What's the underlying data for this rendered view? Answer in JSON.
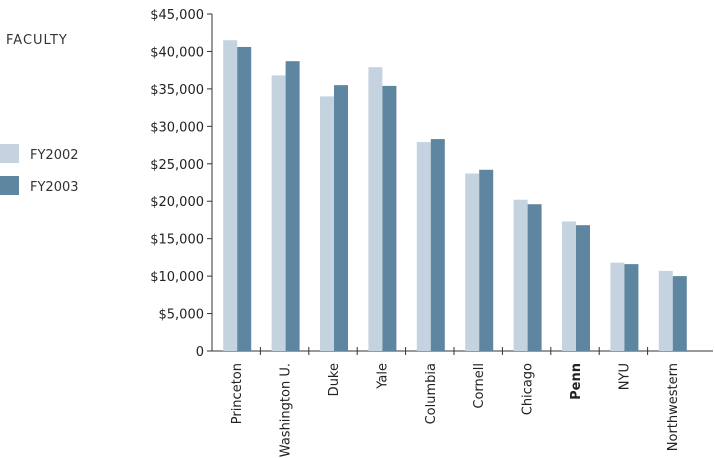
{
  "side_title": "FACULTY",
  "colors": {
    "FY2002": "#c4d3df",
    "FY2003": "#5e86a0",
    "axis": "#333333"
  },
  "chart_data": {
    "type": "bar",
    "title": "",
    "xlabel": "",
    "ylabel": "",
    "categories": [
      "Princeton",
      "Washington U.",
      "Duke",
      "Yale",
      "Columbia",
      "Cornell",
      "Chicago",
      "Penn",
      "NYU",
      "Northwestern"
    ],
    "highlight_category": "Penn",
    "series": [
      {
        "name": "FY2002",
        "values": [
          41500,
          36800,
          34000,
          37900,
          27900,
          23700,
          20200,
          17300,
          11800,
          10700
        ]
      },
      {
        "name": "FY2003",
        "values": [
          40600,
          38700,
          35500,
          35400,
          28300,
          24200,
          19600,
          16800,
          11600,
          10000
        ]
      }
    ],
    "ylim": [
      0,
      45000
    ],
    "yticks": [
      0,
      5000,
      10000,
      15000,
      20000,
      25000,
      30000,
      35000,
      40000,
      45000
    ],
    "ytick_labels": [
      "0",
      "$5,000",
      "$10,000",
      "$15,000",
      "$20,000",
      "$25,000",
      "$30,000",
      "$35,000",
      "$40,000",
      "$45,000"
    ],
    "legend": {
      "placement": "left",
      "entries": [
        "FY2002",
        "FY2003"
      ]
    },
    "grid": false
  }
}
